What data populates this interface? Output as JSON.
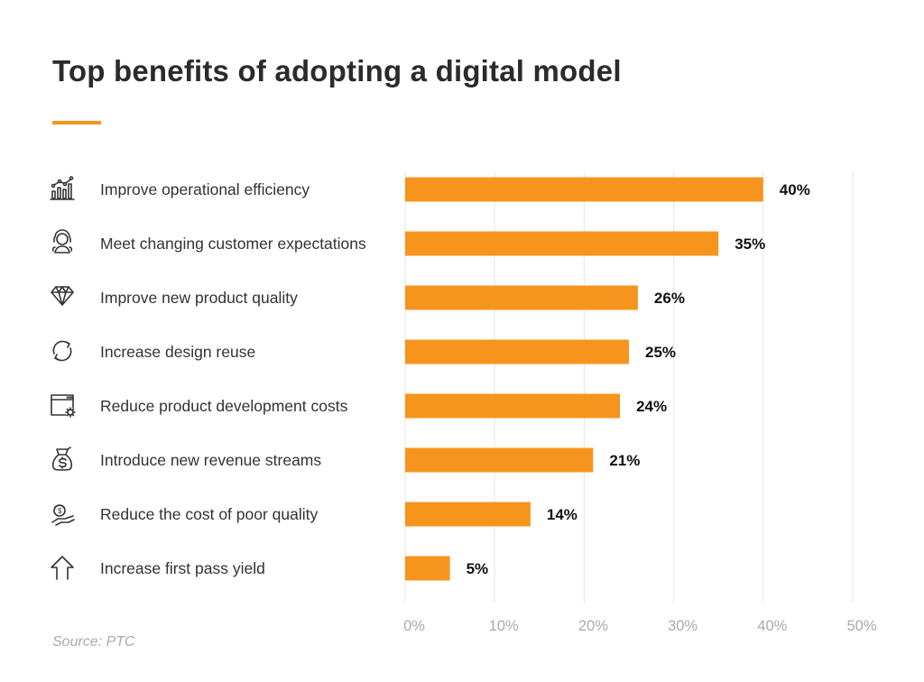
{
  "chart_data": {
    "type": "bar",
    "orientation": "horizontal",
    "title": "Top benefits of adopting a digital model",
    "categories": [
      "Improve operational efficiency",
      "Meet changing customer expectations",
      "Improve new product quality",
      "Increase design reuse",
      "Reduce product development costs",
      "Introduce new revenue streams",
      "Reduce the cost of poor quality",
      "Increase first pass yield"
    ],
    "icons": [
      "growth-chart-icon",
      "customers-icon",
      "diamond-icon",
      "refresh-cycle-icon",
      "browser-gear-icon",
      "money-bag-icon",
      "hand-coin-icon",
      "arrow-up-icon"
    ],
    "values": [
      40,
      35,
      26,
      25,
      24,
      21,
      14,
      5
    ],
    "data_labels": [
      "40%",
      "35%",
      "26%",
      "25%",
      "24%",
      "21%",
      "14%",
      "5%"
    ],
    "xlim": [
      0,
      50
    ],
    "x_ticks": [
      0,
      10,
      20,
      30,
      40,
      50
    ],
    "x_tick_labels": [
      "0%",
      "10%",
      "20%",
      "30%",
      "40%",
      "50%"
    ],
    "xlabel": "",
    "ylabel": "",
    "grid": "vertical",
    "legend": "none",
    "source": "Source: PTC",
    "colors": {
      "bar": "#F7941D",
      "accent": "#F7941D",
      "grid": "#e6e6e6"
    }
  }
}
